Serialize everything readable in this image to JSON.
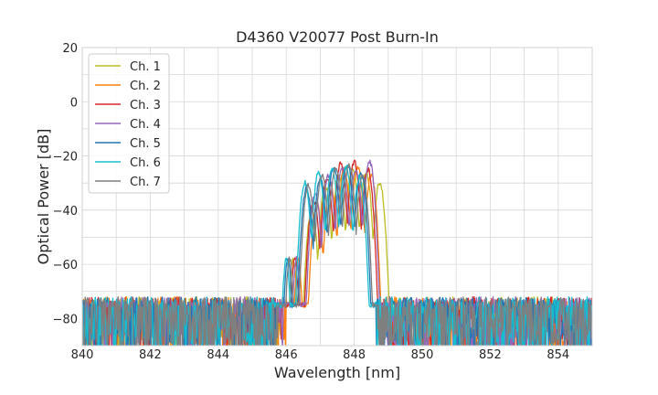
{
  "chart_data": {
    "type": "line",
    "title": "D4360 V20077 Post Burn-In",
    "xlabel": "Wavelength [nm]",
    "ylabel": "Optical Power [dB]",
    "xlim": [
      840,
      855
    ],
    "ylim": [
      -90,
      20
    ],
    "x_ticks": [
      "840",
      "842",
      "844",
      "846",
      "848",
      "850",
      "852",
      "854"
    ],
    "y_ticks": [
      "20",
      "0",
      "−20",
      "−40",
      "−60",
      "−80"
    ],
    "grid": true,
    "legend_position": "top-left",
    "noise_floor_db": -71,
    "series": [
      {
        "name": "Ch. 1",
        "color": "#bcbd22",
        "peaks": [
          {
            "x": 846.75,
            "y": -40
          },
          {
            "x": 847.15,
            "y": -31
          },
          {
            "x": 847.55,
            "y": -27
          },
          {
            "x": 847.95,
            "y": -24
          },
          {
            "x": 848.35,
            "y": -26
          },
          {
            "x": 848.75,
            "y": -30
          }
        ]
      },
      {
        "name": "Ch. 2",
        "color": "#ff7f0e",
        "peaks": [
          {
            "x": 846.9,
            "y": -38
          },
          {
            "x": 847.3,
            "y": -30
          },
          {
            "x": 847.7,
            "y": -25
          },
          {
            "x": 848.1,
            "y": -24
          },
          {
            "x": 848.5,
            "y": -27
          }
        ]
      },
      {
        "name": "Ch. 3",
        "color": "#d62728",
        "peaks": [
          {
            "x": 846.8,
            "y": -36
          },
          {
            "x": 847.2,
            "y": -28
          },
          {
            "x": 847.6,
            "y": -23
          },
          {
            "x": 848.0,
            "y": -22
          },
          {
            "x": 848.4,
            "y": -25
          }
        ]
      },
      {
        "name": "Ch. 4",
        "color": "#9467bd",
        "peaks": [
          {
            "x": 846.85,
            "y": -34
          },
          {
            "x": 847.25,
            "y": -27
          },
          {
            "x": 847.65,
            "y": -24
          },
          {
            "x": 848.05,
            "y": -25
          },
          {
            "x": 848.45,
            "y": -22
          }
        ]
      },
      {
        "name": "Ch. 5",
        "color": "#1f77b4",
        "peaks": [
          {
            "x": 846.6,
            "y": -32
          },
          {
            "x": 847.0,
            "y": -28
          },
          {
            "x": 847.4,
            "y": -24
          },
          {
            "x": 847.8,
            "y": -23
          },
          {
            "x": 848.2,
            "y": -26
          }
        ]
      },
      {
        "name": "Ch. 6",
        "color": "#17becf",
        "peaks": [
          {
            "x": 846.55,
            "y": -30
          },
          {
            "x": 846.95,
            "y": -26
          },
          {
            "x": 847.35,
            "y": -25
          },
          {
            "x": 847.75,
            "y": -24
          },
          {
            "x": 848.15,
            "y": -28
          }
        ]
      },
      {
        "name": "Ch. 7",
        "color": "#7f7f7f",
        "peaks": [
          {
            "x": 846.65,
            "y": -31
          },
          {
            "x": 847.05,
            "y": -27
          },
          {
            "x": 847.45,
            "y": -24
          },
          {
            "x": 847.85,
            "y": -23
          },
          {
            "x": 848.25,
            "y": -27
          }
        ]
      }
    ]
  }
}
